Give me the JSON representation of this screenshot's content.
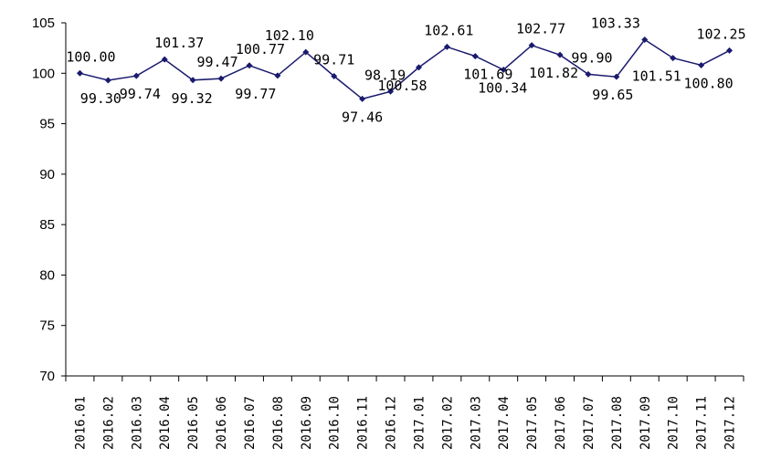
{
  "chart_data": {
    "type": "line",
    "title": "",
    "xlabel": "",
    "ylabel": "",
    "ylim": [
      70,
      105
    ],
    "yticks": [
      70,
      75,
      80,
      85,
      90,
      95,
      100,
      105
    ],
    "grid": false,
    "legend": "none",
    "categories": [
      "2016.01",
      "2016.02",
      "2016.03",
      "2016.04",
      "2016.05",
      "2016.06",
      "2016.07",
      "2016.08",
      "2016.09",
      "2016.10",
      "2016.11",
      "2016.12",
      "2017.01",
      "2017.02",
      "2017.03",
      "2017.04",
      "2017.05",
      "2017.06",
      "2017.07",
      "2017.08",
      "2017.09",
      "2017.10",
      "2017.11",
      "2017.12"
    ],
    "series": [
      {
        "values": [
          100.0,
          99.3,
          99.74,
          101.37,
          99.32,
          99.47,
          100.77,
          99.77,
          102.1,
          99.71,
          97.46,
          98.19,
          100.58,
          102.61,
          101.69,
          100.34,
          102.77,
          101.82,
          99.9,
          99.65,
          103.33,
          101.51,
          100.8,
          102.25
        ],
        "labels": [
          "100.00",
          "99.30",
          "99.74",
          "101.37",
          "99.32",
          "99.47",
          "100.77",
          "99.77",
          "102.10",
          "99.71",
          "97.46",
          "98.19",
          "100.58",
          "102.61",
          "101.69",
          "100.34",
          "102.77",
          "101.82",
          "99.90",
          "99.65",
          "103.33",
          "101.51",
          "100.80",
          "102.25"
        ],
        "color": "#1a1a6e"
      }
    ]
  }
}
